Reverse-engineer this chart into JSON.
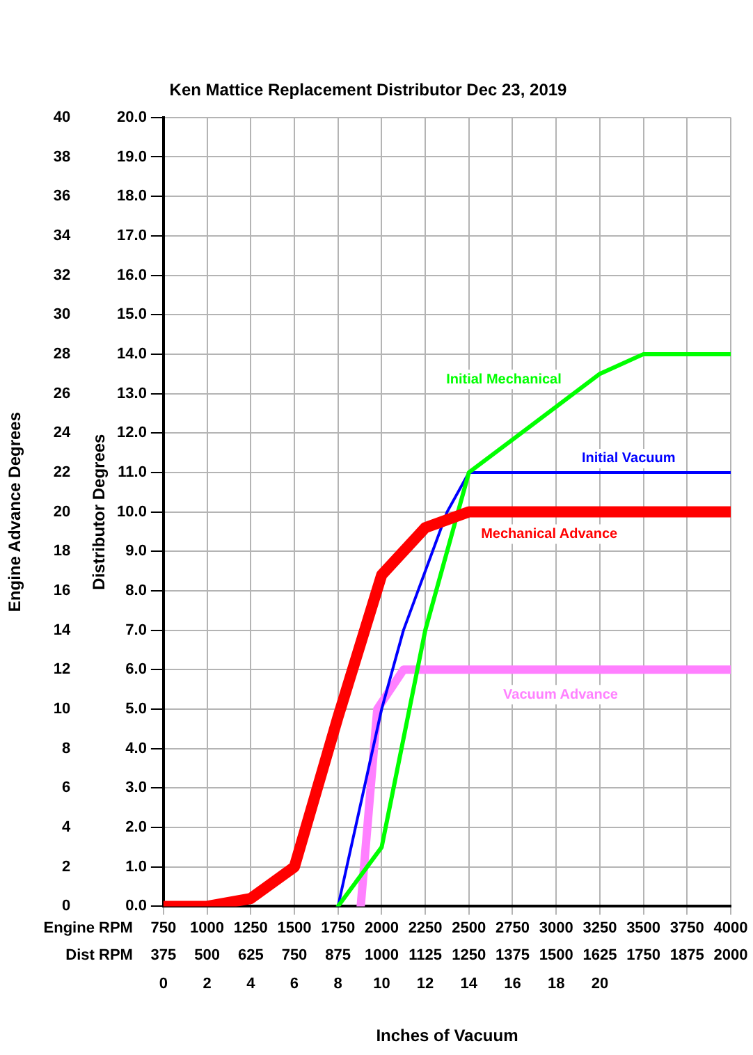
{
  "chart_data": {
    "type": "line",
    "title": "Ken Mattice Replacement Distributor Dec 23, 2019",
    "xlabel": "Engine RPM",
    "x2label": "Inches of Vacuum",
    "annotations": [
      "Dist RPM",
      "375",
      "500",
      "625",
      "750",
      "875",
      "1000",
      "1125",
      "1250",
      "1375",
      "1500",
      "1625",
      "1750",
      "1875",
      "2000"
    ],
    "ylabel": "Distributor Degrees",
    "y2label": "Engine Advance Degrees",
    "xlim": [
      750,
      4000
    ],
    "xticks": [
      750,
      1000,
      1250,
      1500,
      1750,
      2000,
      2250,
      2500,
      2750,
      3000,
      3250,
      3500,
      3750,
      4000
    ],
    "x2lim": [
      0,
      26
    ],
    "x2ticks": [
      0,
      2,
      4,
      6,
      8,
      10,
      12,
      14,
      16,
      18,
      20
    ],
    "ylim": [
      0,
      20
    ],
    "yticks": [
      {
        "value": 0,
        "label": "0.0"
      },
      {
        "value": 1,
        "label": "1.0"
      },
      {
        "value": 2,
        "label": "2.0"
      },
      {
        "value": 3,
        "label": "3.0"
      },
      {
        "value": 4,
        "label": "4.0"
      },
      {
        "value": 5,
        "label": "5.0"
      },
      {
        "value": 6,
        "label": "6.0"
      },
      {
        "value": 7,
        "label": "7.0"
      },
      {
        "value": 8,
        "label": "8.0"
      },
      {
        "value": 9,
        "label": "9.0"
      },
      {
        "value": 10,
        "label": "10.0"
      },
      {
        "value": 11,
        "label": "11.0"
      },
      {
        "value": 12,
        "label": "12.0"
      },
      {
        "value": 13,
        "label": "13.0"
      },
      {
        "value": 14,
        "label": "14.0"
      },
      {
        "value": 15,
        "label": "15.0"
      },
      {
        "value": 16,
        "label": "16.0"
      },
      {
        "value": 17,
        "label": "17.0"
      },
      {
        "value": 18,
        "label": "18.0"
      },
      {
        "value": 19,
        "label": "19.0"
      },
      {
        "value": 20,
        "label": "20.0"
      }
    ],
    "y2lim": [
      0,
      40
    ],
    "y2ticks": [
      0,
      2,
      4,
      6,
      8,
      10,
      12,
      14,
      16,
      18,
      20,
      22,
      24,
      26,
      28,
      30,
      32,
      34,
      36,
      38,
      40
    ],
    "grid": true,
    "legend": false,
    "marker": "none",
    "line_style": "solid",
    "series": [
      {
        "name": "Mechanical Advance",
        "color": "#ff0000",
        "x": [
          750,
          1000,
          1250,
          1500,
          1750,
          2000,
          2250,
          2500,
          4000
        ],
        "values": [
          0,
          0,
          0.2,
          1.0,
          4.8,
          8.4,
          9.6,
          10.0,
          10.0
        ]
      },
      {
        "name": "Initial Mechanical",
        "color": "#00ff00",
        "x": [
          1750,
          2000,
          2250,
          2500,
          3250,
          3500,
          4000
        ],
        "values": [
          0,
          1.5,
          7.0,
          11.0,
          13.5,
          14.0,
          14.0
        ]
      },
      {
        "name": "Initial Vacuum",
        "color": "#0000ff",
        "x": [
          1750,
          2000,
          2125,
          2375,
          2500,
          4000
        ],
        "values": [
          0,
          5.0,
          7.0,
          10.0,
          11.0,
          11.0
        ]
      },
      {
        "name": "Vacuum Advance",
        "color": "#ff80ff",
        "x": [
          1880,
          1975,
          2125,
          4000
        ],
        "values": [
          0,
          5.0,
          6.0,
          6.0
        ]
      }
    ]
  }
}
